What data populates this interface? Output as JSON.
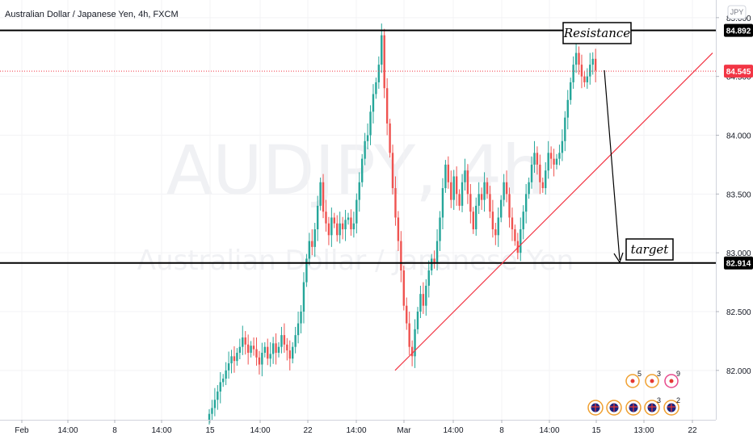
{
  "header": {
    "title": "Australian Dollar / Japanese Yen, 4h, FXCM",
    "currency_button": "JPY"
  },
  "watermark": {
    "symbol": "AUDJPY, 4h",
    "name": "Australian Dollar / Japanese Yen"
  },
  "chart_data": {
    "type": "candlestick",
    "title": "Australian Dollar / Japanese Yen, 4h, FXCM",
    "symbol": "AUDJPY",
    "interval": "4h",
    "source": "FXCM",
    "ylim": [
      81.58,
      85.15
    ],
    "y_ticks": [
      {
        "value": 85.0,
        "label": "85.000"
      },
      {
        "value": 84.5,
        "label": "84.500"
      },
      {
        "value": 84.0,
        "label": "84.000"
      },
      {
        "value": 83.5,
        "label": "83.500"
      },
      {
        "value": 83.0,
        "label": "83.000"
      },
      {
        "value": 82.5,
        "label": "82.500"
      },
      {
        "value": 82.0,
        "label": "82.000"
      }
    ],
    "x_ticks": [
      "Feb",
      "14:00",
      "8",
      "14:00",
      "15",
      "14:00",
      "22",
      "14:00",
      "Mar",
      "14:00",
      "8",
      "14:00",
      "15",
      "13:00",
      "22"
    ],
    "current_price": {
      "value": 84.545,
      "label": "84.545",
      "color": "#f23645"
    },
    "levels": [
      {
        "name": "Resistance",
        "value": 84.892,
        "label": "84.892"
      },
      {
        "name": "target",
        "value": 82.914,
        "label": "82.914"
      }
    ],
    "trendline": {
      "from": {
        "index": 0,
        "price": 82.0
      },
      "to": {
        "index": 178,
        "price": 84.7
      },
      "color": "#f23645"
    },
    "candle_colors": {
      "up": "#26a69a",
      "down": "#ef5350"
    },
    "closes": [
      81.63,
      81.68,
      81.75,
      81.82,
      81.9,
      81.93,
      82.0,
      82.06,
      82.12,
      82.08,
      82.15,
      82.2,
      82.28,
      82.22,
      82.15,
      82.21,
      82.18,
      82.11,
      82.05,
      82.15,
      82.2,
      82.1,
      82.14,
      82.23,
      82.15,
      82.2,
      82.3,
      82.22,
      82.17,
      82.1,
      82.2,
      82.3,
      82.4,
      82.5,
      82.75,
      82.95,
      83.1,
      83.05,
      83.2,
      83.4,
      83.6,
      83.35,
      83.25,
      83.15,
      83.3,
      83.25,
      83.15,
      83.25,
      83.2,
      83.28,
      83.3,
      83.2,
      83.25,
      83.45,
      83.6,
      83.8,
      83.95,
      84.0,
      84.2,
      84.35,
      84.45,
      84.6,
      84.85,
      84.4,
      84.1,
      83.85,
      83.55,
      83.3,
      83.1,
      82.85,
      82.55,
      82.4,
      82.2,
      82.12,
      82.35,
      82.5,
      82.65,
      82.55,
      82.72,
      82.85,
      82.95,
      82.92,
      83.1,
      83.3,
      83.55,
      83.75,
      83.6,
      83.45,
      83.65,
      83.5,
      83.4,
      83.6,
      83.7,
      83.5,
      83.35,
      83.2,
      83.4,
      83.5,
      83.45,
      83.6,
      83.5,
      83.35,
      83.2,
      83.15,
      83.3,
      83.45,
      83.6,
      83.5,
      83.3,
      83.2,
      83.1,
      83.0,
      83.2,
      83.35,
      83.5,
      83.6,
      83.75,
      83.85,
      83.75,
      83.6,
      83.55,
      83.7,
      83.85,
      83.8,
      83.75,
      83.8,
      83.85,
      83.95,
      84.15,
      84.3,
      84.45,
      84.6,
      84.7,
      84.6,
      84.5,
      84.45,
      84.5,
      84.6,
      84.65,
      84.55
    ]
  },
  "calendar_events": [
    {
      "icon": "flag-icon",
      "count": "5"
    },
    {
      "icon": "flag-icon",
      "count": "3"
    },
    {
      "icon": "flag-icon",
      "count": "9"
    },
    {
      "icon": "flag-icon",
      "count": "3"
    },
    {
      "icon": "flag-icon",
      "count": "2"
    }
  ]
}
